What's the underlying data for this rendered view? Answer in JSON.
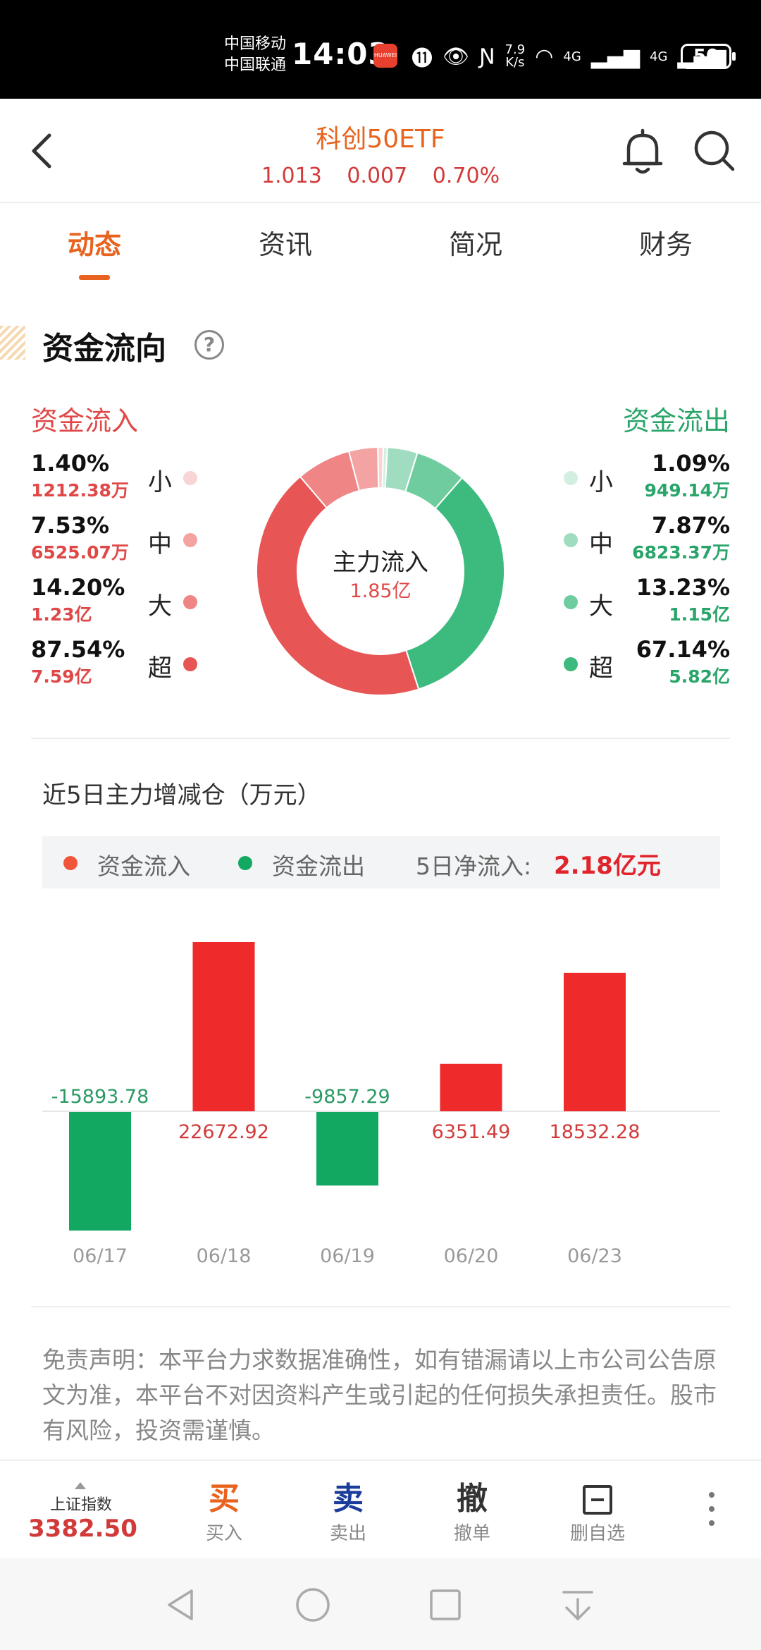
{
  "status_bar": {
    "carrier1": "中国移动",
    "carrier2": "中国联通",
    "time": "14:03",
    "app_badge": "HUAWEI",
    "speed_top": "7.9",
    "speed_bottom": "K/s",
    "net1": "4G",
    "net2": "4G",
    "battery": "50"
  },
  "header": {
    "title": "科创50ETF",
    "price": "1.013",
    "change": "0.007",
    "change_pct": "0.70%"
  },
  "tabs": [
    {
      "label": "动态",
      "active": true
    },
    {
      "label": "资讯",
      "active": false
    },
    {
      "label": "简况",
      "active": false
    },
    {
      "label": "财务",
      "active": false
    }
  ],
  "capital_flow": {
    "section_title": "资金流向",
    "help": "?",
    "inflow_title": "资金流入",
    "outflow_title": "资金流出",
    "inflow": [
      {
        "level": "小",
        "pct": "1.40%",
        "amount": "1212.38万",
        "color": "#f9d4d4"
      },
      {
        "level": "中",
        "pct": "7.53%",
        "amount": "6525.07万",
        "color": "#f4a3a3"
      },
      {
        "level": "大",
        "pct": "14.20%",
        "amount": "1.23亿",
        "color": "#ef8585"
      },
      {
        "level": "超",
        "pct": "87.54%",
        "amount": "7.59亿",
        "color": "#e85555"
      }
    ],
    "outflow": [
      {
        "level": "小",
        "pct": "1.09%",
        "amount": "949.14万",
        "color": "#d3efe2"
      },
      {
        "level": "中",
        "pct": "7.87%",
        "amount": "6823.37万",
        "color": "#9fdcc0"
      },
      {
        "level": "大",
        "pct": "13.23%",
        "amount": "1.15亿",
        "color": "#6fcc9e"
      },
      {
        "level": "超",
        "pct": "67.14%",
        "amount": "5.82亿",
        "color": "#3dba7d"
      }
    ],
    "center_title": "主力流入",
    "center_value": "1.85亿"
  },
  "chart_data": {
    "type": "bar",
    "title": "近5日主力增减仓（万元）",
    "categories": [
      "06/17",
      "06/18",
      "06/19",
      "06/20",
      "06/23"
    ],
    "values": [
      -15893.78,
      22672.92,
      -9857.29,
      6351.49,
      18532.28
    ],
    "value_labels": [
      "-15893.78",
      "22672.92",
      "-9857.29",
      "6351.49",
      "18532.28"
    ],
    "positive_color": "#ee2a2a",
    "negative_color": "#12a862",
    "legend": {
      "inflow_label": "资金流入",
      "outflow_label": "资金流出",
      "net_label": "5日净流入:",
      "net_value": "2.18亿元",
      "inflow_color": "#f0543a",
      "outflow_color": "#12a862"
    }
  },
  "disclaimer": "免责声明：本平台力求数据准确性，如有错漏请以上市公司公告原文为准，本平台不对因资料产生或引起的任何损失承担责任。股市有风险，投资需谨慎。",
  "toolbar": {
    "index_label": "上证指数",
    "index_value": "3382.50",
    "buy_glyph": "买",
    "buy_label": "买入",
    "sell_glyph": "卖",
    "sell_label": "卖出",
    "cancel_glyph": "撤",
    "cancel_label": "撤单",
    "remove_label": "删自选",
    "colors": {
      "buy": "#e8641e",
      "sell": "#1a3d9c",
      "cancel": "#333333"
    }
  }
}
